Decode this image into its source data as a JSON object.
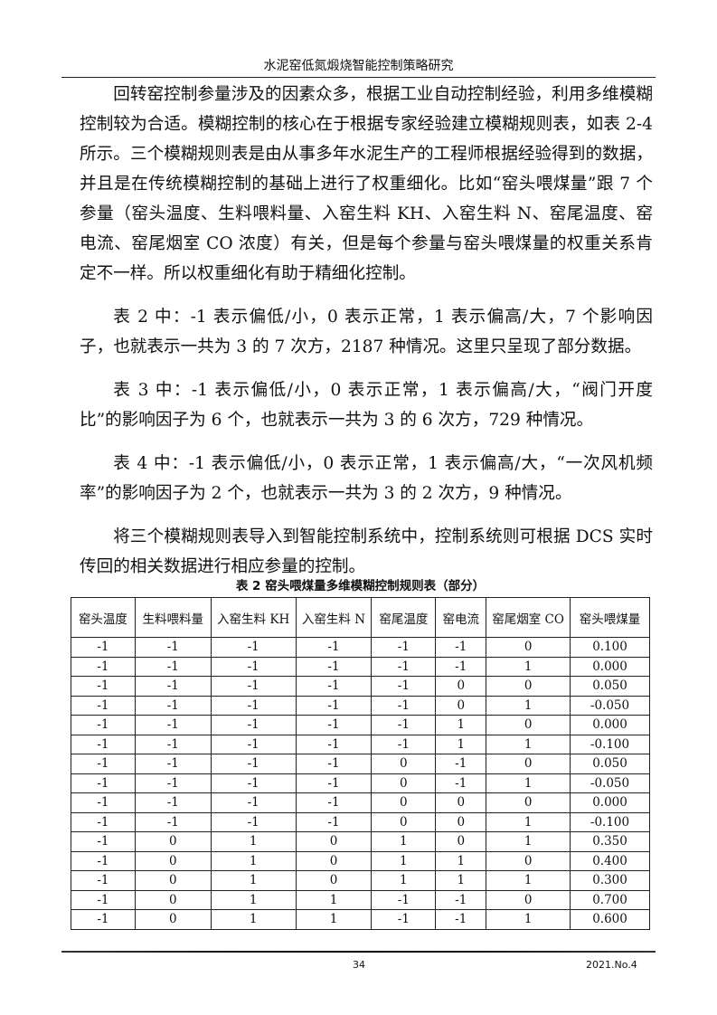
{
  "header": {
    "running_title": "水泥窑低氮煅烧智能控制策略研究"
  },
  "paragraphs": [
    "回转窑控制参量涉及的因素众多，根据工业自动控制经验，利用多维模糊控制较为合适。模糊控制的核心在于根据专家经验建立模糊规则表，如表 2-4 所示。三个模糊规则表是由从事多年水泥生产的工程师根据经验得到的数据，并且是在传统模糊控制的基础上进行了权重细化。比如“窑头喂煤量”跟 7 个参量（窑头温度、生料喂料量、入窑生料 KH、入窑生料 N、窑尾温度、窑电流、窑尾烟室 CO 浓度）有关，但是每个参量与窑头喂煤量的权重关系肯定不一样。所以权重细化有助于精细化控制。",
    "表 2 中：-1 表示偏低/小，0 表示正常，1 表示偏高/大，7 个影响因子，也就表示一共为 3 的 7 次方，2187 种情况。这里只呈现了部分数据。",
    "表 3 中：-1 表示偏低/小，0 表示正常，1 表示偏高/大，“阀门开度比”的影响因子为 6 个，也就表示一共为 3 的 6 次方，729 种情况。",
    "表 4 中：-1 表示偏低/小，0 表示正常，1 表示偏高/大，“一次风机频率”的影响因子为 2 个，也就表示一共为 3 的 2 次方，9 种情况。",
    "将三个模糊规则表导入到智能控制系统中，控制系统则可根据 DCS 实时传回的相关数据进行相应参量的控制。"
  ],
  "table": {
    "caption": "表 2  窑头喂煤量多维模糊控制规则表（部分）",
    "columns": [
      "窑头温度",
      "生料喂料量",
      "入窑生料 KH",
      "入窑生料 N",
      "窑尾温度",
      "窑电流",
      "窑尾烟室 CO",
      "窑头喂煤量"
    ],
    "rows": [
      [
        "-1",
        "-1",
        "-1",
        "-1",
        "-1",
        "-1",
        "0",
        "0.100"
      ],
      [
        "-1",
        "-1",
        "-1",
        "-1",
        "-1",
        "-1",
        "1",
        "0.000"
      ],
      [
        "-1",
        "-1",
        "-1",
        "-1",
        "-1",
        "0",
        "0",
        "0.050"
      ],
      [
        "-1",
        "-1",
        "-1",
        "-1",
        "-1",
        "0",
        "1",
        "-0.050"
      ],
      [
        "-1",
        "-1",
        "-1",
        "-1",
        "-1",
        "1",
        "0",
        "0.000"
      ],
      [
        "-1",
        "-1",
        "-1",
        "-1",
        "-1",
        "1",
        "1",
        "-0.100"
      ],
      [
        "-1",
        "-1",
        "-1",
        "-1",
        "0",
        "-1",
        "0",
        "0.050"
      ],
      [
        "-1",
        "-1",
        "-1",
        "-1",
        "0",
        "-1",
        "1",
        "-0.050"
      ],
      [
        "-1",
        "-1",
        "-1",
        "-1",
        "0",
        "0",
        "0",
        "0.000"
      ],
      [
        "-1",
        "-1",
        "-1",
        "-1",
        "0",
        "0",
        "1",
        "-0.100"
      ],
      [
        "-1",
        "0",
        "1",
        "0",
        "1",
        "0",
        "1",
        "0.350"
      ],
      [
        "-1",
        "0",
        "1",
        "0",
        "1",
        "1",
        "0",
        "0.400"
      ],
      [
        "-1",
        "0",
        "1",
        "0",
        "1",
        "1",
        "1",
        "0.300"
      ],
      [
        "-1",
        "0",
        "1",
        "1",
        "-1",
        "-1",
        "0",
        "0.700"
      ],
      [
        "-1",
        "0",
        "1",
        "1",
        "-1",
        "-1",
        "1",
        "0.600"
      ]
    ]
  },
  "footer": {
    "page_number": "34",
    "issue": "2021.No.4"
  }
}
